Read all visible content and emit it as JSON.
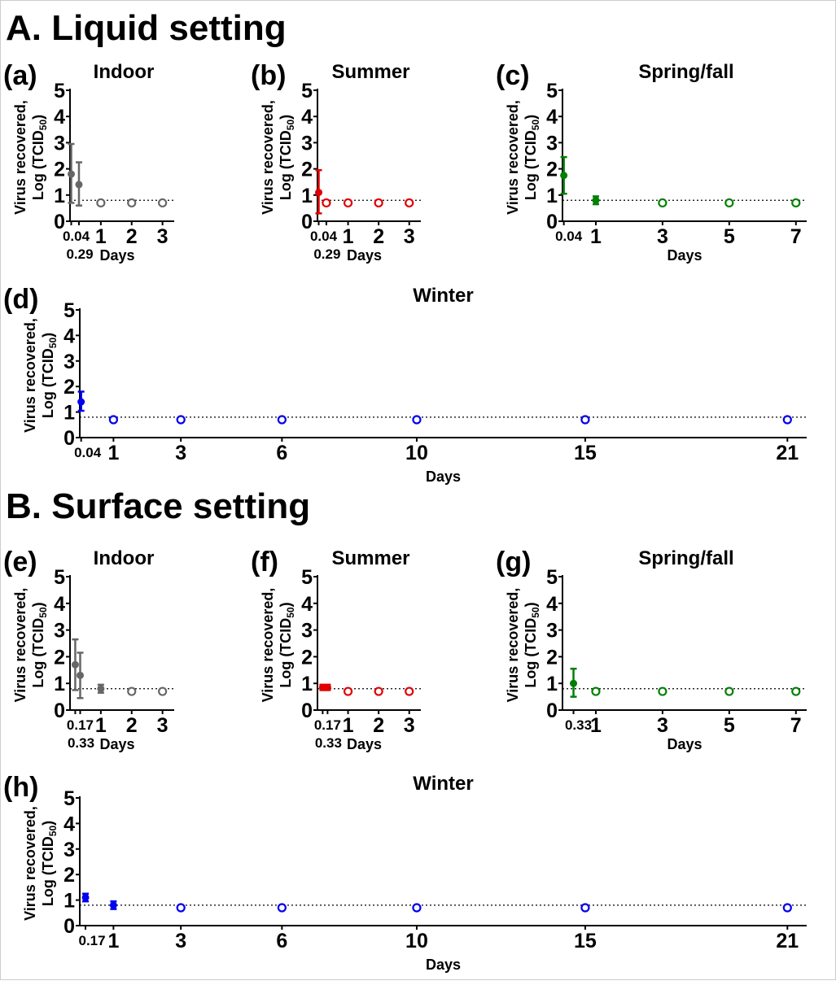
{
  "sections": [
    {
      "label": "A. Liquid setting"
    },
    {
      "label": "B. Surface setting"
    }
  ],
  "ylabel_line1": "Virus recovered,",
  "ylabel_line2": "Log (TCID",
  "ylabel_sub": "50",
  "ylabel_end": ")",
  "xlabel": "Days",
  "colors": {
    "indoor": "#666666",
    "summer": "#e00000",
    "spring_fall": "#008000",
    "winter": "#0000ee",
    "axis": "#000000"
  },
  "limit_of_detection": 0.8,
  "chart_data": [
    {
      "id": "a",
      "letter": "(a)",
      "title": "Indoor",
      "type": "scatter",
      "color": "indoor",
      "ylim": [
        0,
        5
      ],
      "yticks": [
        0,
        1,
        2,
        3,
        4,
        5
      ],
      "xticks": [
        0.04,
        0.29,
        1,
        2,
        3
      ],
      "xlim": [
        0,
        3.3
      ],
      "filled": [
        {
          "x": 0.04,
          "y": 1.8,
          "err": [
            0.7,
            2.95
          ]
        },
        {
          "x": 0.29,
          "y": 1.4,
          "err": [
            0.6,
            2.25
          ]
        }
      ],
      "open": [
        {
          "x": 1,
          "y": 0.7
        },
        {
          "x": 2,
          "y": 0.7
        },
        {
          "x": 3,
          "y": 0.7
        }
      ]
    },
    {
      "id": "b",
      "letter": "(b)",
      "title": "Summer",
      "type": "scatter",
      "color": "summer",
      "ylim": [
        0,
        5
      ],
      "yticks": [
        0,
        1,
        2,
        3,
        4,
        5
      ],
      "xticks": [
        0.04,
        0.29,
        1,
        2,
        3
      ],
      "xlim": [
        0,
        3.3
      ],
      "filled": [
        {
          "x": 0.04,
          "y": 1.1,
          "err": [
            0.3,
            1.95
          ]
        }
      ],
      "open": [
        {
          "x": 0.29,
          "y": 0.7
        },
        {
          "x": 1,
          "y": 0.7
        },
        {
          "x": 2,
          "y": 0.7
        },
        {
          "x": 3,
          "y": 0.7
        }
      ]
    },
    {
      "id": "c",
      "letter": "(c)",
      "title": "Spring/fall",
      "type": "scatter",
      "color": "spring_fall",
      "ylim": [
        0,
        5
      ],
      "yticks": [
        0,
        1,
        2,
        3,
        4,
        5
      ],
      "xticks": [
        0.04,
        1,
        3,
        5,
        7
      ],
      "xlim": [
        0,
        7.25
      ],
      "filled": [
        {
          "x": 0.04,
          "y": 1.75,
          "err": [
            1.05,
            2.45
          ]
        },
        {
          "x": 1,
          "y": 0.8,
          "err": [
            0.65,
            0.95
          ]
        }
      ],
      "open": [
        {
          "x": 3,
          "y": 0.7
        },
        {
          "x": 5,
          "y": 0.7
        },
        {
          "x": 7,
          "y": 0.7
        }
      ]
    },
    {
      "id": "d",
      "letter": "(d)",
      "title": "Winter",
      "type": "scatter",
      "color": "winter",
      "ylim": [
        0,
        5
      ],
      "yticks": [
        0,
        1,
        2,
        3,
        4,
        5
      ],
      "xticks": [
        0.04,
        1,
        3,
        6,
        10,
        15,
        21
      ],
      "xlim": [
        0,
        21.5
      ],
      "filled": [
        {
          "x": 0.04,
          "y": 1.4,
          "err": [
            1.05,
            1.8
          ]
        }
      ],
      "open": [
        {
          "x": 1,
          "y": 0.7
        },
        {
          "x": 3,
          "y": 0.7
        },
        {
          "x": 6,
          "y": 0.7
        },
        {
          "x": 10,
          "y": 0.7
        },
        {
          "x": 15,
          "y": 0.7
        },
        {
          "x": 21,
          "y": 0.7
        }
      ]
    },
    {
      "id": "e",
      "letter": "(e)",
      "title": "Indoor",
      "type": "scatter",
      "color": "indoor",
      "ylim": [
        0,
        5
      ],
      "yticks": [
        0,
        1,
        2,
        3,
        4,
        5
      ],
      "xticks": [
        0.17,
        0.33,
        1,
        2,
        3
      ],
      "xlim": [
        0,
        3.3
      ],
      "filled": [
        {
          "x": 0.17,
          "y": 1.7,
          "err": [
            0.75,
            2.65
          ]
        },
        {
          "x": 0.33,
          "y": 1.3,
          "err": [
            0.45,
            2.15
          ]
        },
        {
          "x": 1,
          "y": 0.8,
          "err": [
            0.65,
            0.95
          ]
        }
      ],
      "open": [
        {
          "x": 2,
          "y": 0.7
        },
        {
          "x": 3,
          "y": 0.7
        }
      ]
    },
    {
      "id": "f",
      "letter": "(f)",
      "title": "Summer",
      "type": "scatter",
      "color": "summer",
      "ylim": [
        0,
        5
      ],
      "yticks": [
        0,
        1,
        2,
        3,
        4,
        5
      ],
      "xticks": [
        0.17,
        0.33,
        1,
        2,
        3
      ],
      "xlim": [
        0,
        3.3
      ],
      "filled": [
        {
          "x": 0.17,
          "y": 0.85,
          "err": [
            0.75,
            0.95
          ]
        },
        {
          "x": 0.33,
          "y": 0.85,
          "err": [
            0.75,
            0.95
          ]
        }
      ],
      "open": [
        {
          "x": 1,
          "y": 0.7
        },
        {
          "x": 2,
          "y": 0.7
        },
        {
          "x": 3,
          "y": 0.7
        }
      ]
    },
    {
      "id": "g",
      "letter": "(g)",
      "title": "Spring/fall",
      "type": "scatter",
      "color": "spring_fall",
      "ylim": [
        0,
        5
      ],
      "yticks": [
        0,
        1,
        2,
        3,
        4,
        5
      ],
      "xticks": [
        0.33,
        1,
        3,
        5,
        7
      ],
      "xlim": [
        0,
        7.25
      ],
      "filled": [
        {
          "x": 0.33,
          "y": 1.0,
          "err": [
            0.5,
            1.55
          ]
        }
      ],
      "open": [
        {
          "x": 1,
          "y": 0.7
        },
        {
          "x": 3,
          "y": 0.7
        },
        {
          "x": 5,
          "y": 0.7
        },
        {
          "x": 7,
          "y": 0.7
        }
      ]
    },
    {
      "id": "h",
      "letter": "(h)",
      "title": "Winter",
      "type": "scatter",
      "color": "winter",
      "ylim": [
        0,
        5
      ],
      "yticks": [
        0,
        1,
        2,
        3,
        4,
        5
      ],
      "xticks": [
        0.17,
        1,
        3,
        6,
        10,
        15,
        21
      ],
      "xlim": [
        0,
        21.5
      ],
      "filled": [
        {
          "x": 0.17,
          "y": 1.1,
          "err": [
            0.95,
            1.25
          ]
        },
        {
          "x": 1,
          "y": 0.8,
          "err": [
            0.65,
            0.95
          ]
        }
      ],
      "open": [
        {
          "x": 3,
          "y": 0.7
        },
        {
          "x": 6,
          "y": 0.7
        },
        {
          "x": 10,
          "y": 0.7
        },
        {
          "x": 15,
          "y": 0.7
        },
        {
          "x": 21,
          "y": 0.7
        }
      ]
    }
  ]
}
